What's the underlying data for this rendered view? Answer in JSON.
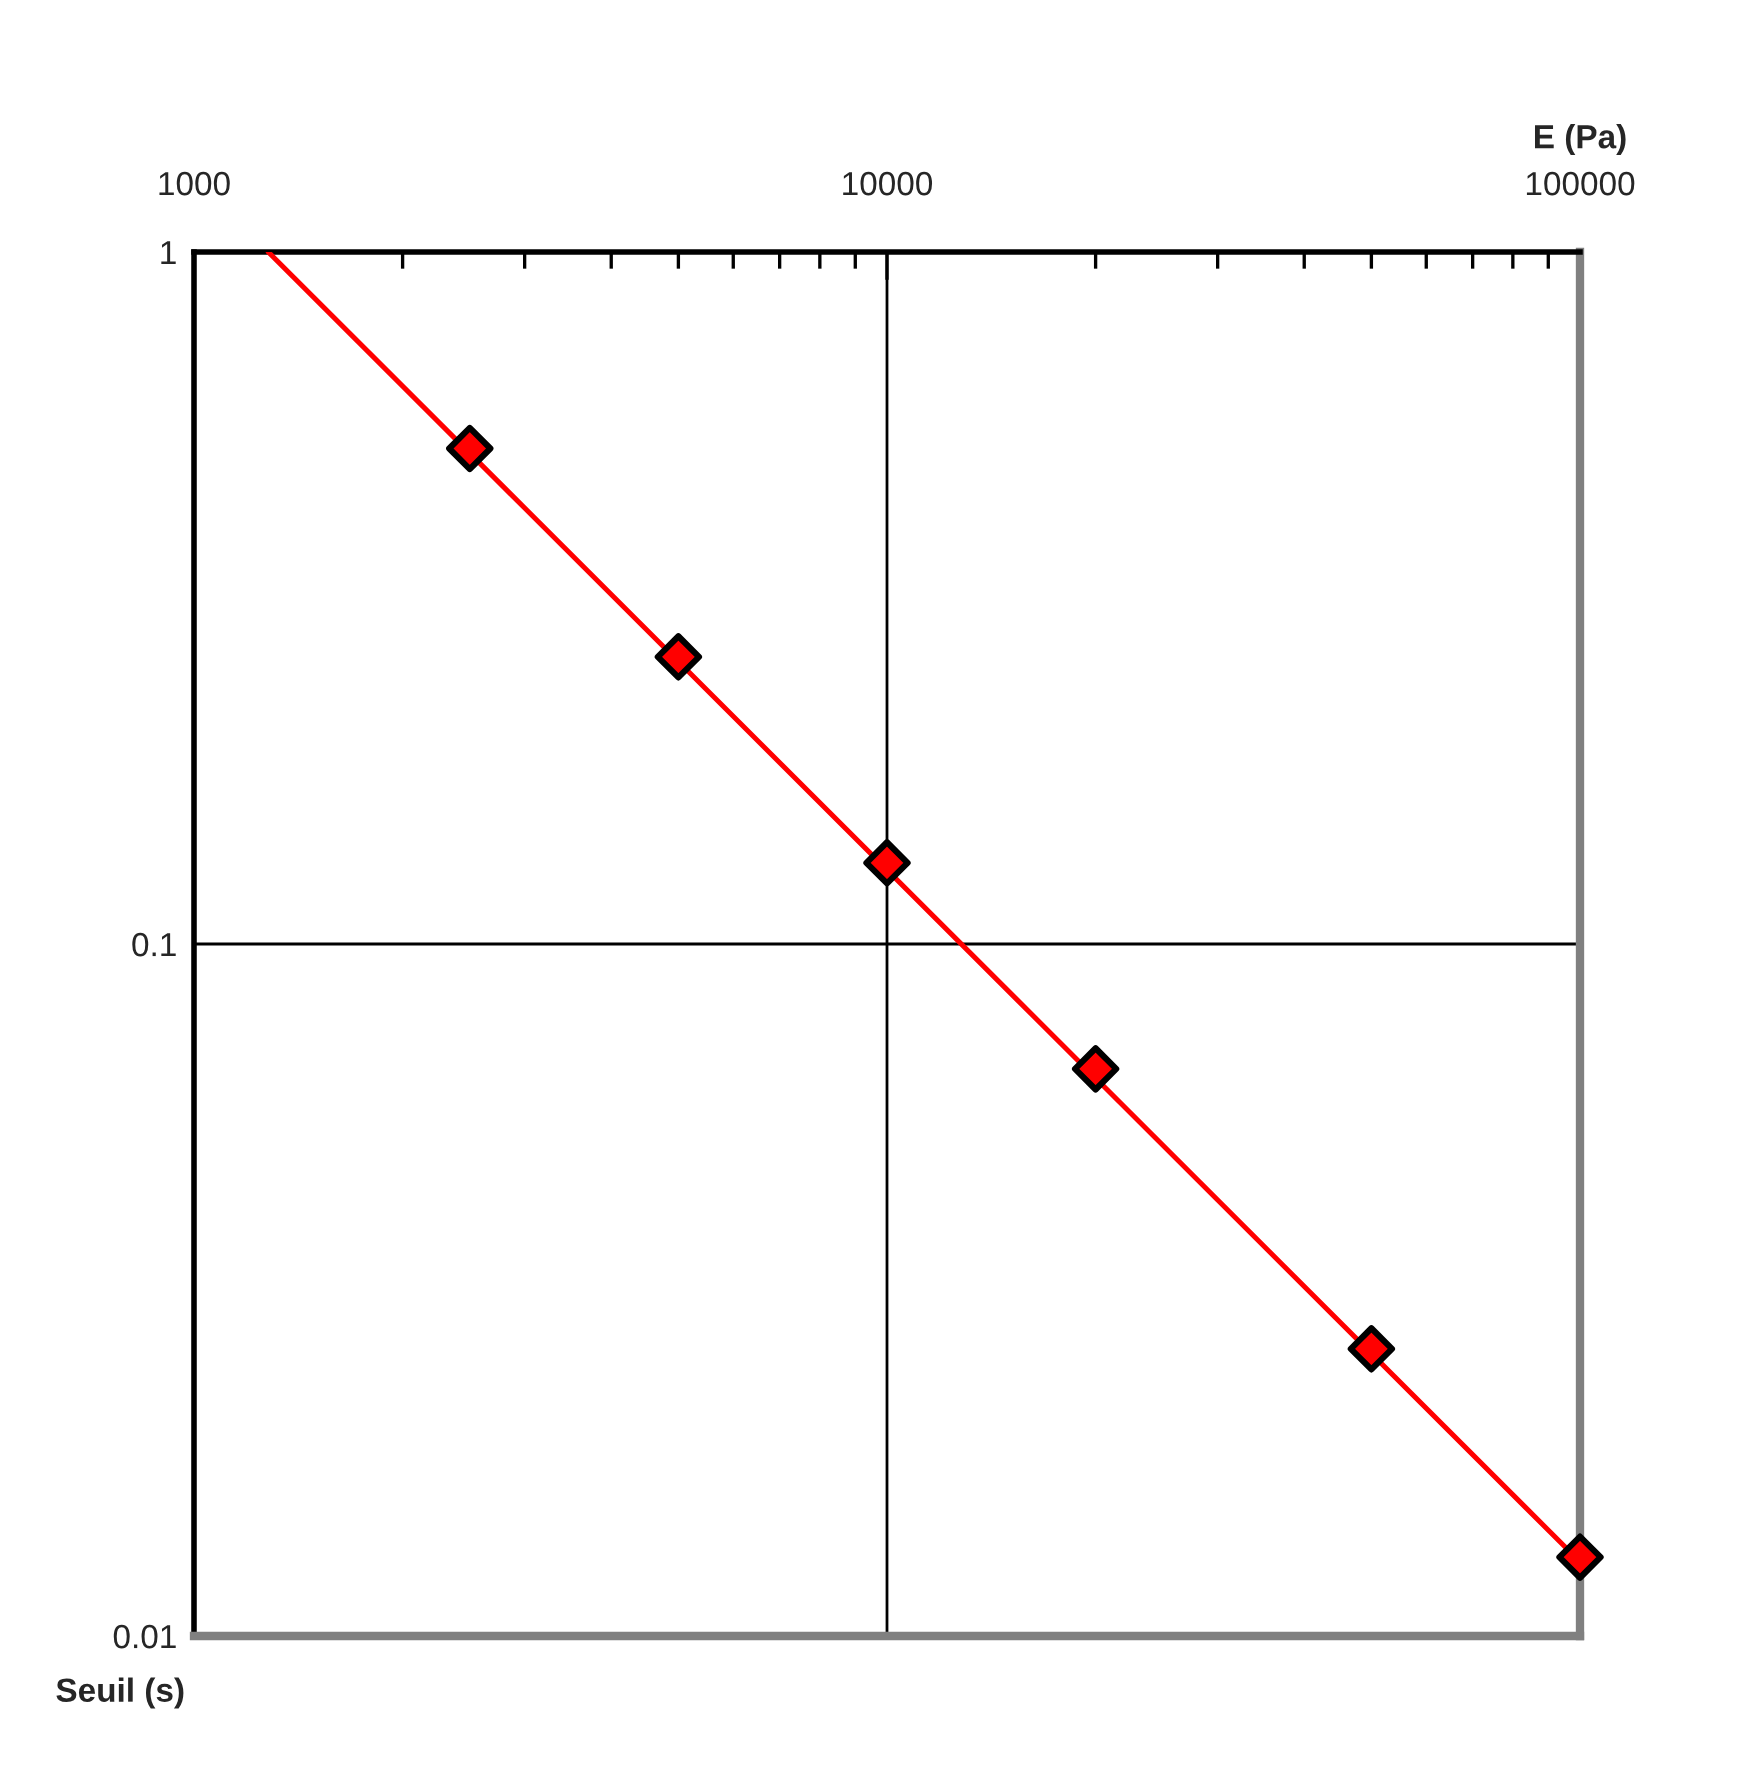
{
  "chart_data": {
    "type": "scatter",
    "xlabel": "E (Pa)",
    "ylabel": "Seuil (s)",
    "log": "xy",
    "x": [
      2500,
      5000,
      10000,
      20000,
      50000,
      100000
    ],
    "series": [
      {
        "color": "#ff0000",
        "marker": "diamond",
        "values": [
          0.52,
          0.26,
          0.131,
          0.066,
          0.026,
          0.013
        ]
      },
      {
        "type": "line",
        "color": "#ff0000",
        "marker": "none",
        "line_style": "solid",
        "x": [
          1280,
          100000
        ],
        "values": [
          1,
          0.0128
        ]
      }
    ],
    "xlim": [
      1000,
      100000
    ],
    "xticks": [
      1000,
      10000,
      100000
    ],
    "ylim": [
      0.01,
      1
    ],
    "yticks": [
      {
        "value": 0.01,
        "label": "0.01"
      },
      {
        "value": 0.1,
        "label": "0.1"
      },
      1
    ],
    "grid": true,
    "legend": false
  }
}
